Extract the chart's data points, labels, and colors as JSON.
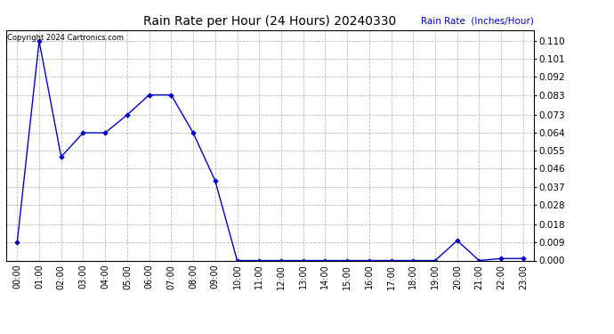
{
  "title": "Rain Rate per Hour (24 Hours) 20240330",
  "ylabel": "Rain Rate  (Inches/Hour)",
  "copyright_text": "Copyright 2024 Cartronics.com",
  "line_color": "#0000cc",
  "background_color": "#ffffff",
  "grid_color": "#bbbbbb",
  "title_color": "#000000",
  "ylabel_color": "#0000cc",
  "x_hours": [
    0,
    1,
    2,
    3,
    4,
    5,
    6,
    7,
    8,
    9,
    10,
    11,
    12,
    13,
    14,
    15,
    16,
    17,
    18,
    19,
    20,
    21,
    22,
    23
  ],
  "y_values": [
    0.009,
    0.11,
    0.052,
    0.064,
    0.064,
    0.073,
    0.083,
    0.083,
    0.064,
    0.04,
    0.0,
    0.0,
    0.0,
    0.0,
    0.0,
    0.0,
    0.0,
    0.0,
    0.0,
    0.0,
    0.01,
    0.0,
    0.001,
    0.001
  ],
  "ylim": [
    0.0,
    0.1155
  ],
  "yticks": [
    0.0,
    0.009,
    0.018,
    0.028,
    0.037,
    0.046,
    0.055,
    0.064,
    0.073,
    0.083,
    0.092,
    0.101,
    0.11
  ]
}
